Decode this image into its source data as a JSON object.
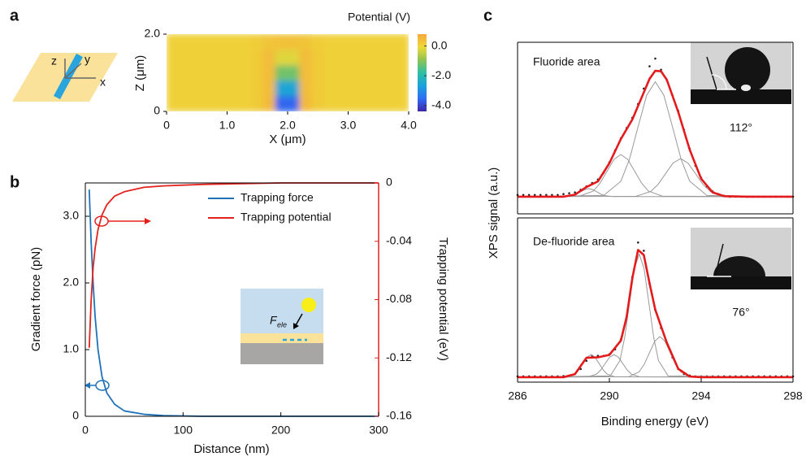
{
  "chart_data": [
    {
      "type": "heatmap",
      "panel_label": "a",
      "schematic_labels": [
        "z",
        "y",
        "x"
      ],
      "colorbar_title": "Potential (V)",
      "xlabel": "X (μm)",
      "ylabel": "Z (μm)",
      "x": [
        0.1,
        0.3,
        0.5,
        0.7,
        0.9,
        1.1,
        1.3,
        1.5,
        1.7,
        1.9,
        2.1,
        2.3,
        2.5,
        2.7,
        2.9,
        3.1,
        3.3,
        3.5,
        3.7,
        3.9
      ],
      "y": [
        0.2,
        0.6,
        1.0,
        1.4,
        1.8
      ],
      "z": [
        [
          0.1,
          0.1,
          0.1,
          0.1,
          0.1,
          0.1,
          0.1,
          0.2,
          0.5,
          -3.6,
          -3.6,
          0.5,
          0.2,
          0.1,
          0.1,
          0.1,
          0.1,
          0.1,
          0.1,
          0.1
        ],
        [
          0.1,
          0.1,
          0.1,
          0.1,
          0.1,
          0.1,
          0.1,
          0.2,
          0.45,
          -2.6,
          -2.6,
          0.45,
          0.2,
          0.1,
          0.1,
          0.1,
          0.1,
          0.1,
          0.1,
          0.1
        ],
        [
          0.1,
          0.1,
          0.1,
          0.1,
          0.1,
          0.1,
          0.1,
          0.2,
          0.45,
          -1.2,
          -1.2,
          0.45,
          0.2,
          0.1,
          0.1,
          0.1,
          0.1,
          0.1,
          0.1,
          0.1
        ],
        [
          0.1,
          0.1,
          0.1,
          0.1,
          0.1,
          0.1,
          0.1,
          0.2,
          0.45,
          -0.2,
          -0.2,
          0.45,
          0.2,
          0.1,
          0.1,
          0.1,
          0.1,
          0.1,
          0.1,
          0.1
        ],
        [
          0.1,
          0.1,
          0.1,
          0.1,
          0.1,
          0.1,
          0.1,
          0.15,
          0.3,
          0.35,
          0.35,
          0.3,
          0.15,
          0.1,
          0.1,
          0.1,
          0.1,
          0.1,
          0.1,
          0.1
        ]
      ],
      "xlim": [
        0,
        4
      ],
      "ylim": [
        0,
        2
      ],
      "xticks": [
        0,
        {
          "value": 1,
          "label": "1.0"
        },
        {
          "value": 2,
          "label": "2.0"
        },
        {
          "value": 3,
          "label": "3.0"
        },
        {
          "value": 4,
          "label": "4.0"
        }
      ],
      "yticks": [
        0,
        {
          "value": 2,
          "label": "2.0"
        }
      ],
      "zlim": [
        -4.4,
        0.8
      ],
      "zticks": [
        {
          "value": 0,
          "label": "0.0"
        },
        {
          "value": -2,
          "label": "-2.0"
        },
        {
          "value": -4,
          "label": "-4.0"
        }
      ],
      "colormap": [
        "#3e26a8",
        "#2f6df5",
        "#1aa2da",
        "#2fbfa3",
        "#8fc451",
        "#eed939",
        "#f6a83a"
      ]
    },
    {
      "type": "line",
      "panel_label": "b",
      "xlabel": "Distance (nm)",
      "ylabel": "Gradient force (pN)",
      "y2label": "Trapping potential (eV)",
      "legend": "upper right",
      "inset_label": "F",
      "inset_subscript": "ele",
      "xlim": [
        0,
        300
      ],
      "xticks": [
        0,
        100,
        200,
        300
      ],
      "ylim": [
        0,
        3.5
      ],
      "yticks": [
        0,
        {
          "value": 1,
          "label": "1.0"
        },
        {
          "value": 2,
          "label": "2.0"
        },
        {
          "value": 3,
          "label": "3.0"
        }
      ],
      "y2lim": [
        -0.16,
        0
      ],
      "y2ticks": [
        0,
        -0.04,
        -0.08,
        -0.12,
        -0.16
      ],
      "series": [
        {
          "name": "Trapping force",
          "color": "#1f72b8",
          "x": [
            4,
            5,
            6,
            8,
            10,
            13,
            17,
            22,
            30,
            40,
            60,
            80,
            120,
            200,
            300
          ],
          "values": [
            3.4,
            3.0,
            2.6,
            2.0,
            1.5,
            1.0,
            0.6,
            0.35,
            0.18,
            0.08,
            0.03,
            0.01,
            0,
            0,
            0
          ]
        },
        {
          "name": "Trapping potential",
          "color": "#e3221e",
          "axis": "y2",
          "x": [
            4,
            6,
            8,
            10,
            13,
            17,
            22,
            30,
            40,
            60,
            80,
            120,
            200,
            300
          ],
          "values": [
            -0.113,
            -0.08,
            -0.058,
            -0.045,
            -0.032,
            -0.022,
            -0.015,
            -0.009,
            -0.006,
            -0.003,
            -0.002,
            -0.001,
            0,
            0
          ]
        }
      ]
    },
    {
      "type": "line",
      "panel_label": "c",
      "ylabel": "XPS signal (a.u.)",
      "annotation": "Fluoride area",
      "contact_angle": "112°",
      "xlim": [
        286,
        298
      ],
      "ylim": [
        0,
        1
      ],
      "series": [
        {
          "color": "#222222",
          "style": "dots",
          "x": [
            286,
            286.25,
            286.5,
            286.75,
            287,
            287.25,
            287.5,
            287.75,
            288,
            288.25,
            288.5,
            288.75,
            289,
            289.25,
            289.5,
            289.75,
            290,
            290.25,
            290.5,
            290.75,
            291,
            291.25,
            291.5,
            291.75,
            292,
            292.25,
            292.5,
            292.75,
            293,
            293.25,
            293.5,
            293.75,
            294,
            294.25,
            294.5,
            294.75,
            295,
            295.25,
            295.5,
            295.75,
            296,
            296.25,
            296.5,
            296.75,
            297,
            297.25,
            297.5,
            297.75,
            298
          ],
          "values": [
            0.11,
            0.11,
            0.11,
            0.11,
            0.11,
            0.11,
            0.11,
            0.11,
            0.115,
            0.12,
            0.125,
            0.14,
            0.16,
            0.18,
            0.2,
            0.24,
            0.3,
            0.37,
            0.44,
            0.5,
            0.56,
            0.64,
            0.73,
            0.86,
            0.905,
            0.84,
            0.78,
            0.69,
            0.6,
            0.49,
            0.38,
            0.28,
            0.21,
            0.16,
            0.13,
            0.115,
            0.105,
            0.1,
            0.1,
            0.1,
            0.1,
            0.1,
            0.1,
            0.1,
            0.1,
            0.1,
            0.1,
            0.1,
            0.1
          ]
        },
        {
          "color": "#999999",
          "x": [
            286,
            289.75,
            290.5,
            290.875,
            291.25,
            291.625,
            292,
            292.375,
            292.75,
            293.125,
            293.5,
            294.25,
            298
          ],
          "values": [
            0.1,
            0.107,
            0.19,
            0.318,
            0.507,
            0.691,
            0.77,
            0.691,
            0.507,
            0.318,
            0.19,
            0.107,
            0.1
          ]
        },
        {
          "color": "#999999",
          "x": [
            286,
            288.7,
            289.3,
            289.6,
            289.9,
            290.2,
            290.5,
            290.8,
            291.1,
            291.4,
            291.7,
            292.3,
            298
          ],
          "values": [
            0.1,
            0.103,
            0.133,
            0.18,
            0.249,
            0.317,
            0.346,
            0.317,
            0.249,
            0.18,
            0.133,
            0.103,
            0.1
          ]
        },
        {
          "color": "#999999",
          "x": [
            286,
            291.15,
            291.8,
            292.125,
            292.45,
            292.775,
            293.1,
            293.425,
            293.75,
            294.075,
            294.4,
            295.05,
            298
          ],
          "values": [
            0.1,
            0.102,
            0.13,
            0.172,
            0.235,
            0.296,
            0.322,
            0.296,
            0.235,
            0.172,
            0.13,
            0.102,
            0.1
          ]
        },
        {
          "color": "#999999",
          "x": [
            286,
            288.05,
            288.4,
            288.575,
            288.75,
            288.925,
            289.1,
            289.275,
            289.45,
            289.625,
            289.8,
            290.15,
            298
          ],
          "values": [
            0.1,
            0.101,
            0.106,
            0.115,
            0.129,
            0.141,
            0.147,
            0.141,
            0.129,
            0.115,
            0.106,
            0.101,
            0.1
          ]
        },
        {
          "color": "#e41a1c",
          "style": "fit",
          "x": [
            286,
            287,
            288,
            288.5,
            289,
            289.5,
            290,
            290.5,
            291,
            291.5,
            291.75,
            292,
            292.25,
            292.5,
            293,
            293.5,
            294,
            294.5,
            295,
            296,
            298
          ],
          "values": [
            0.1,
            0.1,
            0.1,
            0.112,
            0.156,
            0.189,
            0.295,
            0.436,
            0.55,
            0.708,
            0.787,
            0.834,
            0.831,
            0.782,
            0.594,
            0.374,
            0.204,
            0.125,
            0.103,
            0.1,
            0.1
          ]
        }
      ]
    },
    {
      "type": "line",
      "xlabel": "Binding energy (eV)",
      "annotation": "De-fluoride area",
      "contact_angle": "76°",
      "xlim": [
        286,
        298
      ],
      "xticks": [
        286,
        290,
        294,
        298
      ],
      "ylim": [
        0,
        1
      ],
      "series": [
        {
          "color": "#222222",
          "style": "dots",
          "x": [
            286,
            286.25,
            286.5,
            286.75,
            287,
            287.25,
            287.5,
            287.75,
            288,
            288.25,
            288.5,
            288.75,
            289,
            289.25,
            289.5,
            289.75,
            290,
            290.25,
            290.5,
            290.75,
            291,
            291.25,
            291.5,
            291.75,
            292,
            292.25,
            292.5,
            292.75,
            293,
            293.25,
            293.5,
            293.75,
            294,
            294.25,
            294.5,
            294.75,
            295,
            295.25,
            295.5,
            295.75,
            296,
            296.25,
            296.5,
            296.75,
            297,
            297.25,
            297.5,
            297.75,
            298
          ],
          "values": [
            0.035,
            0.035,
            0.035,
            0.035,
            0.035,
            0.035,
            0.035,
            0.035,
            0.037,
            0.04,
            0.05,
            0.08,
            0.13,
            0.16,
            0.16,
            0.16,
            0.17,
            0.2,
            0.26,
            0.4,
            0.64,
            0.85,
            0.8,
            0.6,
            0.44,
            0.33,
            0.24,
            0.15,
            0.08,
            0.05,
            0.04,
            0.035,
            0.035,
            0.035,
            0.035,
            0.035,
            0.035,
            0.035,
            0.035,
            0.035,
            0.035,
            0.035,
            0.035,
            0.035,
            0.035,
            0.035,
            0.035,
            0.035,
            0.035
          ]
        },
        {
          "color": "#999999",
          "x": [
            286,
            290.04,
            290.46,
            290.67,
            290.88,
            291.09,
            291.3,
            291.51,
            291.72,
            291.93,
            292.14,
            292.56,
            298
          ],
          "values": [
            0.03,
            0.038,
            0.131,
            0.274,
            0.485,
            0.692,
            0.78,
            0.692,
            0.485,
            0.274,
            0.131,
            0.038,
            0.03
          ]
        },
        {
          "color": "#999999",
          "x": [
            286,
            290.85,
            291.3,
            291.525,
            291.75,
            291.975,
            292.2,
            292.425,
            292.65,
            292.875,
            293.1,
            293.55,
            298
          ],
          "values": [
            0.03,
            0.033,
            0.063,
            0.11,
            0.18,
            0.248,
            0.277,
            0.248,
            0.18,
            0.11,
            0.063,
            0.033,
            0.03
          ]
        },
        {
          "color": "#999999",
          "x": [
            286,
            289.06,
            289.44,
            289.63,
            289.82,
            290.01,
            290.2,
            290.39,
            290.58,
            290.77,
            290.96,
            291.34,
            298
          ],
          "values": [
            0.03,
            0.032,
            0.049,
            0.075,
            0.114,
            0.152,
            0.168,
            0.152,
            0.114,
            0.075,
            0.049,
            0.032,
            0.03
          ]
        },
        {
          "color": "#999999",
          "x": [
            286,
            288.15,
            288.5,
            288.675,
            288.85,
            289.025,
            289.2,
            289.375,
            289.55,
            289.725,
            289.9,
            290.25,
            298
          ],
          "values": [
            0.03,
            0.032,
            0.049,
            0.075,
            0.114,
            0.152,
            0.168,
            0.152,
            0.114,
            0.075,
            0.049,
            0.032,
            0.03
          ]
        },
        {
          "color": "#e41a1c",
          "style": "fit",
          "x": [
            286,
            286.5,
            287,
            287.5,
            288,
            288.5,
            289,
            289.5,
            290,
            290.5,
            290.75,
            291,
            291.25,
            291.5,
            291.75,
            292,
            292.5,
            293,
            293.5,
            294,
            294.5,
            295,
            296,
            297,
            298
          ],
          "values": [
            0.03,
            0.03,
            0.03,
            0.03,
            0.03,
            0.049,
            0.148,
            0.151,
            0.166,
            0.253,
            0.396,
            0.633,
            0.805,
            0.774,
            0.602,
            0.441,
            0.241,
            0.081,
            0.034,
            0.03,
            0.03,
            0.03,
            0.03,
            0.03,
            0.03
          ]
        }
      ]
    }
  ]
}
